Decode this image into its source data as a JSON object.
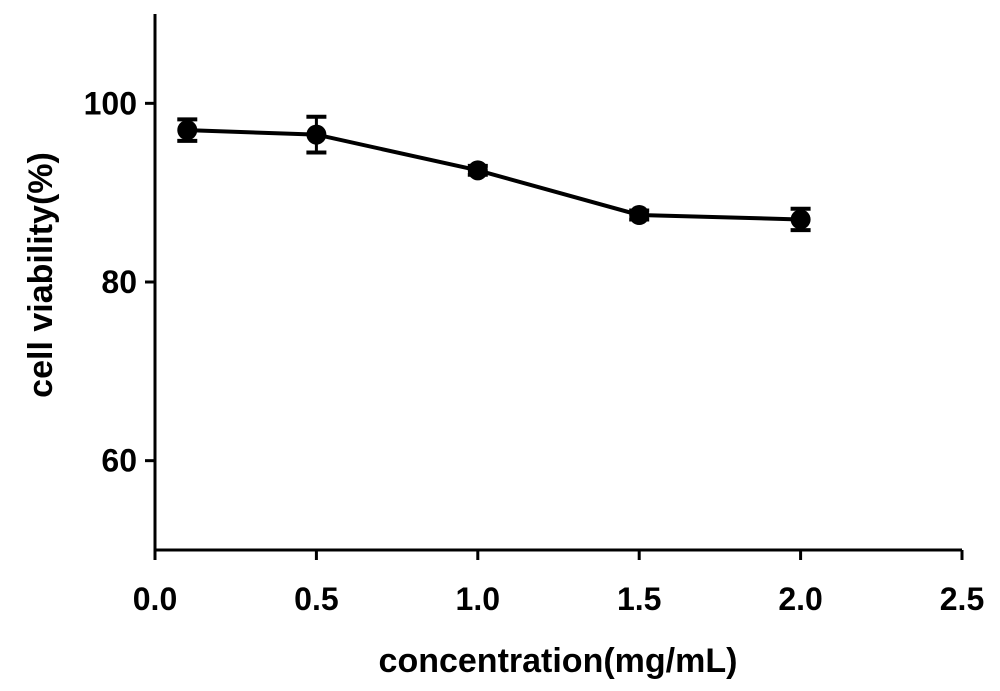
{
  "chart_data": {
    "type": "line",
    "title": "",
    "xlabel": "concentration(mg/mL)",
    "ylabel": "cell viability(%)",
    "xlim": [
      0.0,
      2.5
    ],
    "ylim": [
      50,
      110
    ],
    "x_ticks": [
      0.0,
      0.5,
      1.0,
      1.5,
      2.0,
      2.5
    ],
    "x_tick_labels": [
      "0.0",
      "0.5",
      "1.0",
      "1.5",
      "2.0",
      "2.5"
    ],
    "y_ticks": [
      60,
      80,
      100
    ],
    "y_tick_labels": [
      "60",
      "80",
      "100"
    ],
    "grid": false,
    "legend": "none",
    "series": [
      {
        "x": [
          0.1,
          0.5,
          1.0,
          1.5,
          2.0
        ],
        "y": [
          97.0,
          96.5,
          92.5,
          87.5,
          87.0
        ],
        "error": [
          1.2,
          2.0,
          0.5,
          0.5,
          1.2
        ],
        "marker": "circle",
        "color": "#000000"
      }
    ]
  }
}
